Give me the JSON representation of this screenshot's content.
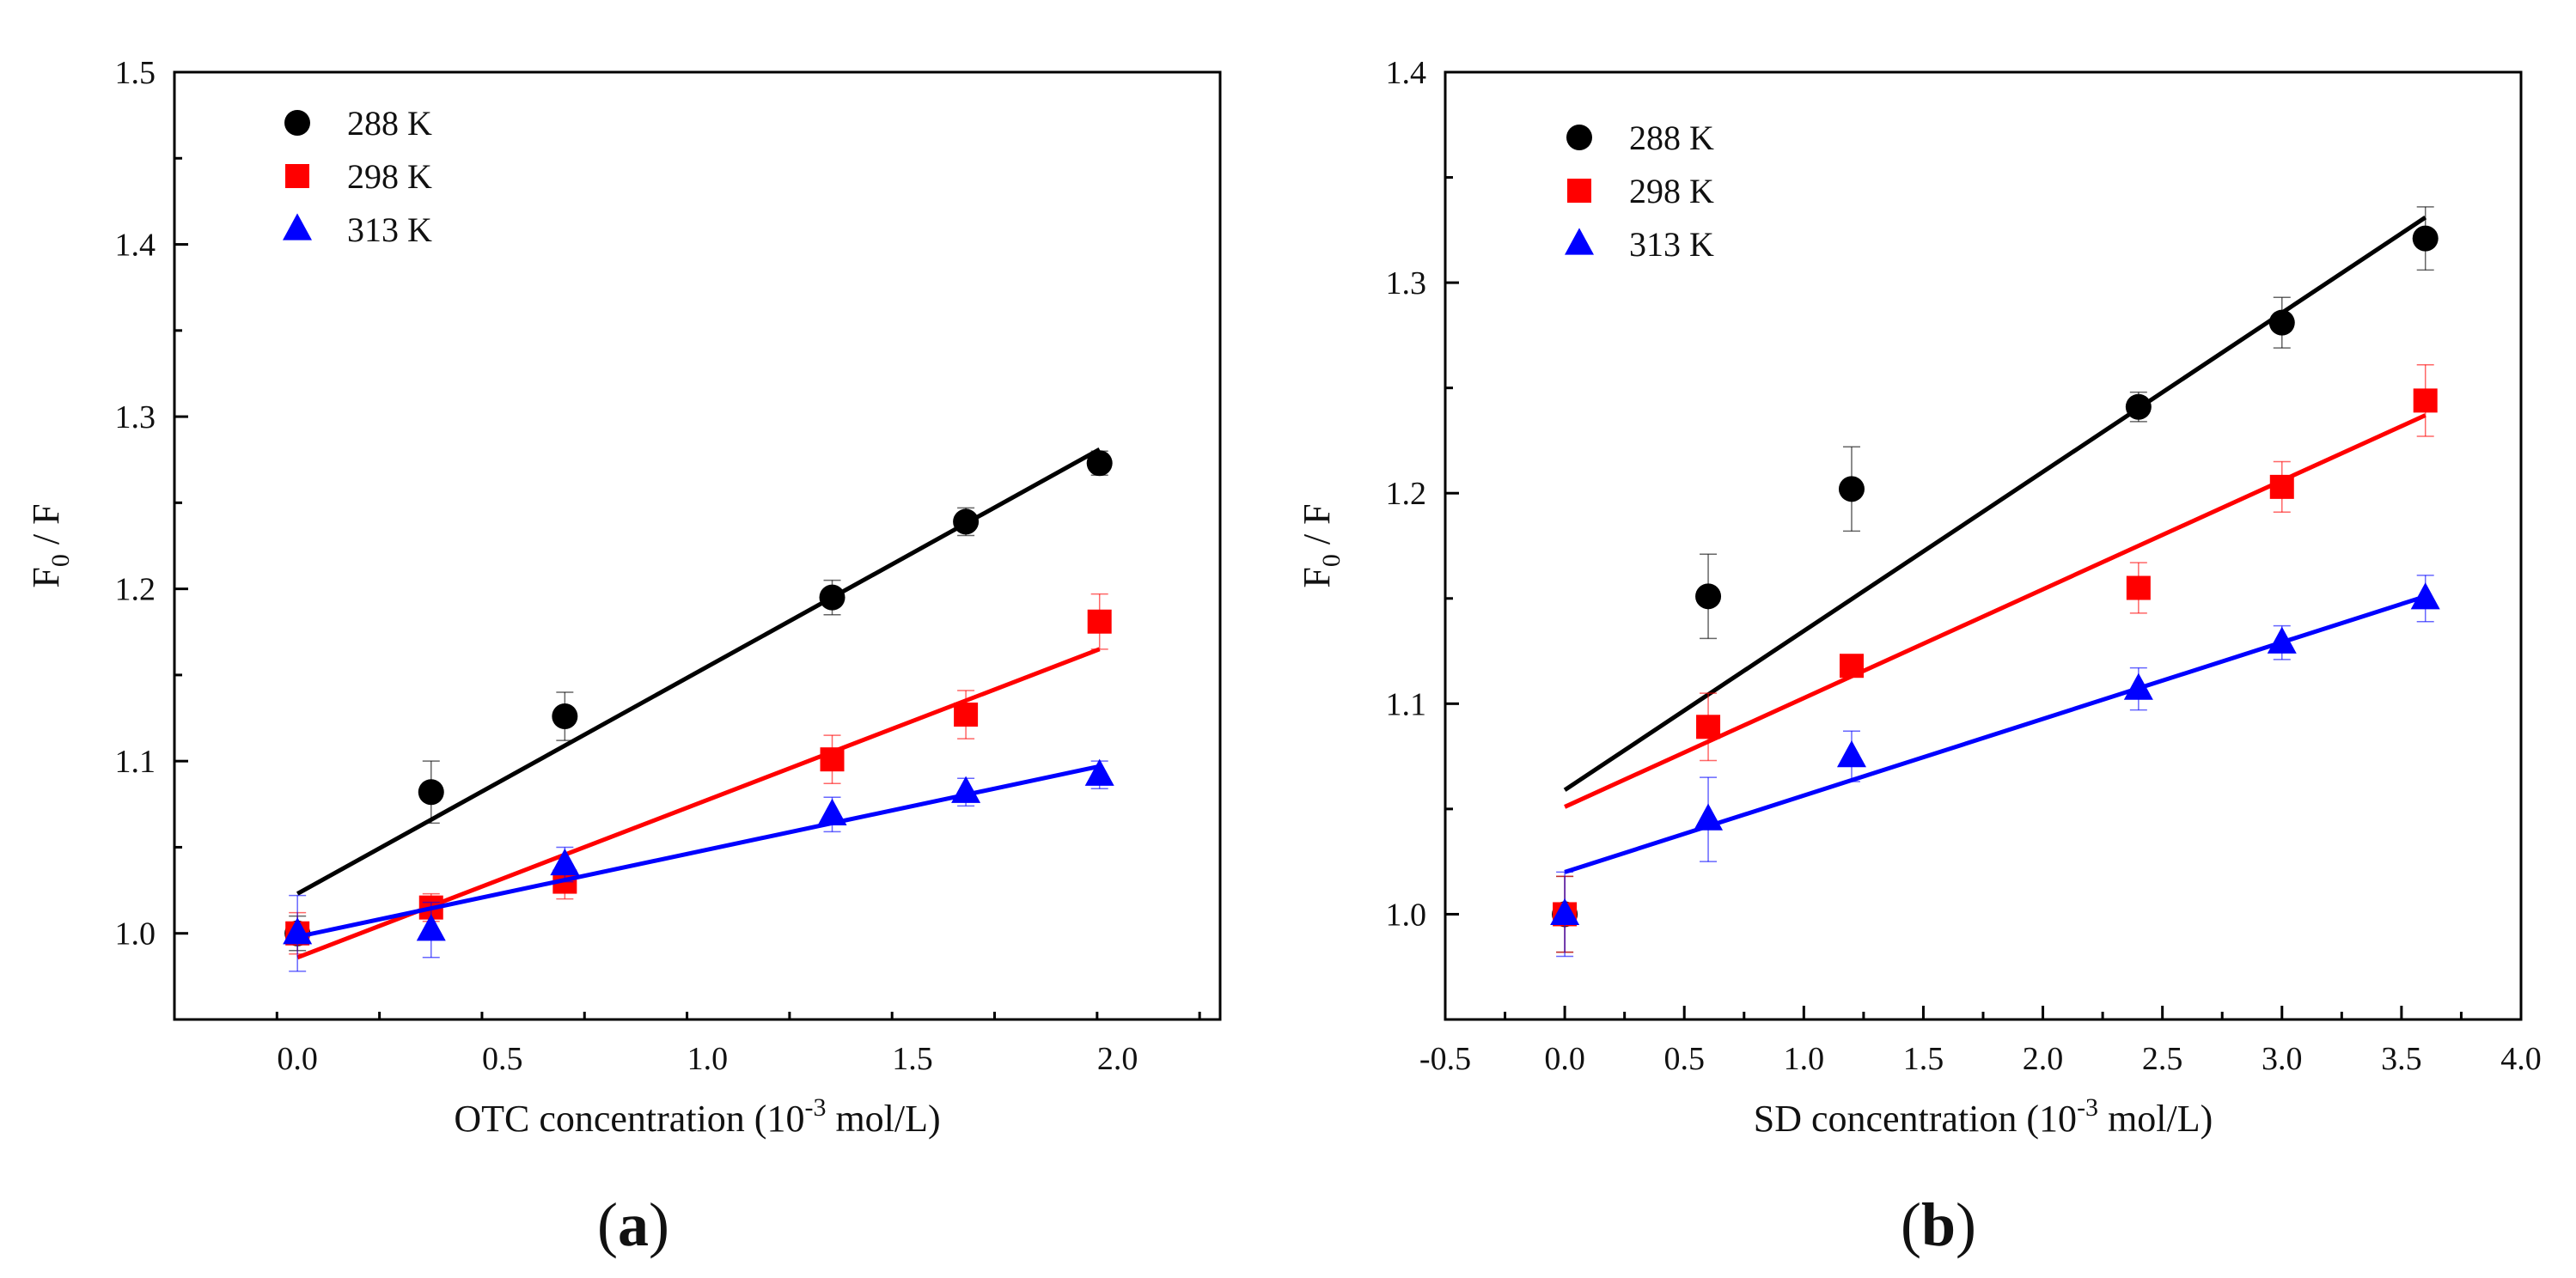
{
  "chart_data": [
    {
      "type": "scatter",
      "panel_label": "a",
      "xlabel_main": "OTC concentration (10",
      "xlabel_sup": "-3",
      "xlabel_tail": " mol/L)",
      "ylabel_main": "F",
      "ylabel_sub": "0",
      "ylabel_tail": " / F",
      "xlim": [
        -0.3,
        2.25
      ],
      "ylim": [
        0.95,
        1.5
      ],
      "x_ticks": [
        "0.0",
        "0.5",
        "1.0",
        "1.5",
        "2.0"
      ],
      "x_tick_values": [
        0,
        0.5,
        1.0,
        1.5,
        2.0
      ],
      "y_ticks": [
        "1.0",
        "1.1",
        "1.2",
        "1.3",
        "1.4",
        "1.5"
      ],
      "y_tick_values": [
        1.0,
        1.1,
        1.2,
        1.3,
        1.4,
        1.5
      ],
      "legend_position": "top-left",
      "series": [
        {
          "name": "288 K",
          "color": "#000000",
          "marker": "circle",
          "x": [
            0,
            0.326,
            0.652,
            1.304,
            1.63,
            1.956
          ],
          "y": [
            1.0,
            1.082,
            1.126,
            1.195,
            1.239,
            1.273
          ],
          "err": [
            0.01,
            0.018,
            0.014,
            0.01,
            0.008,
            0.007
          ],
          "fit": [
            [
              0,
              1.023
            ],
            [
              1.956,
              1.281
            ]
          ]
        },
        {
          "name": "298 K",
          "color": "#ff0000",
          "marker": "square",
          "x": [
            0,
            0.326,
            0.652,
            1.304,
            1.63,
            1.956
          ],
          "y": [
            1.0,
            1.015,
            1.03,
            1.101,
            1.127,
            1.181
          ],
          "err": [
            0.012,
            0.008,
            0.01,
            0.014,
            0.014,
            0.016
          ],
          "fit": [
            [
              0,
              0.986
            ],
            [
              1.956,
              1.165
            ]
          ]
        },
        {
          "name": "313 K",
          "color": "#0000ff",
          "marker": "triangle",
          "x": [
            0,
            0.326,
            0.652,
            1.304,
            1.63,
            1.956
          ],
          "y": [
            1.0,
            1.002,
            1.04,
            1.069,
            1.082,
            1.092
          ],
          "err": [
            0.022,
            0.016,
            0.01,
            0.01,
            0.008,
            0.008
          ],
          "fit": [
            [
              0,
              0.998
            ],
            [
              1.956,
              1.097
            ]
          ]
        }
      ]
    },
    {
      "type": "scatter",
      "panel_label": "b",
      "xlabel_main": "SD concentration (10",
      "xlabel_sup": "-3",
      "xlabel_tail": " mol/L)",
      "ylabel_main": "F",
      "ylabel_sub": "0",
      "ylabel_tail": " / F",
      "xlim": [
        -0.5,
        4.0
      ],
      "ylim": [
        0.95,
        1.4
      ],
      "x_ticks": [
        "-0.5",
        "0.0",
        "0.5",
        "1.0",
        "1.5",
        "2.0",
        "2.5",
        "3.0",
        "3.5",
        "4.0"
      ],
      "x_tick_values": [
        -0.5,
        0,
        0.5,
        1.0,
        1.5,
        2.0,
        2.5,
        3.0,
        3.5,
        4.0
      ],
      "y_ticks": [
        "1.0",
        "1.1",
        "1.2",
        "1.3",
        "1.4"
      ],
      "y_tick_values": [
        1.0,
        1.1,
        1.2,
        1.3,
        1.4
      ],
      "legend_position": "top-left",
      "series": [
        {
          "name": "288 K",
          "color": "#000000",
          "marker": "circle",
          "x": [
            0,
            0.6,
            1.2,
            2.4,
            3.0,
            3.6
          ],
          "y": [
            1.0,
            1.151,
            1.202,
            1.241,
            1.281,
            1.321
          ],
          "err": [
            0.018,
            0.02,
            0.02,
            0.007,
            0.012,
            0.015
          ],
          "fit": [
            [
              0,
              1.059
            ],
            [
              3.6,
              1.331
            ]
          ]
        },
        {
          "name": "298 K",
          "color": "#ff0000",
          "marker": "square",
          "x": [
            0,
            0.6,
            1.2,
            2.4,
            3.0,
            3.6
          ],
          "y": [
            1.0,
            1.089,
            1.118,
            1.155,
            1.203,
            1.244
          ],
          "err": [
            0.018,
            0.016,
            0.005,
            0.012,
            0.012,
            0.017
          ],
          "fit": [
            [
              0,
              1.051
            ],
            [
              3.6,
              1.237
            ]
          ]
        },
        {
          "name": "313 K",
          "color": "#0000ff",
          "marker": "triangle",
          "x": [
            0,
            0.6,
            1.2,
            2.4,
            3.0,
            3.6
          ],
          "y": [
            1.0,
            1.045,
            1.075,
            1.107,
            1.129,
            1.15
          ],
          "err": [
            0.02,
            0.02,
            0.012,
            0.01,
            0.008,
            0.011
          ],
          "fit": [
            [
              0,
              1.02
            ],
            [
              3.6,
              1.151
            ]
          ]
        }
      ]
    }
  ]
}
